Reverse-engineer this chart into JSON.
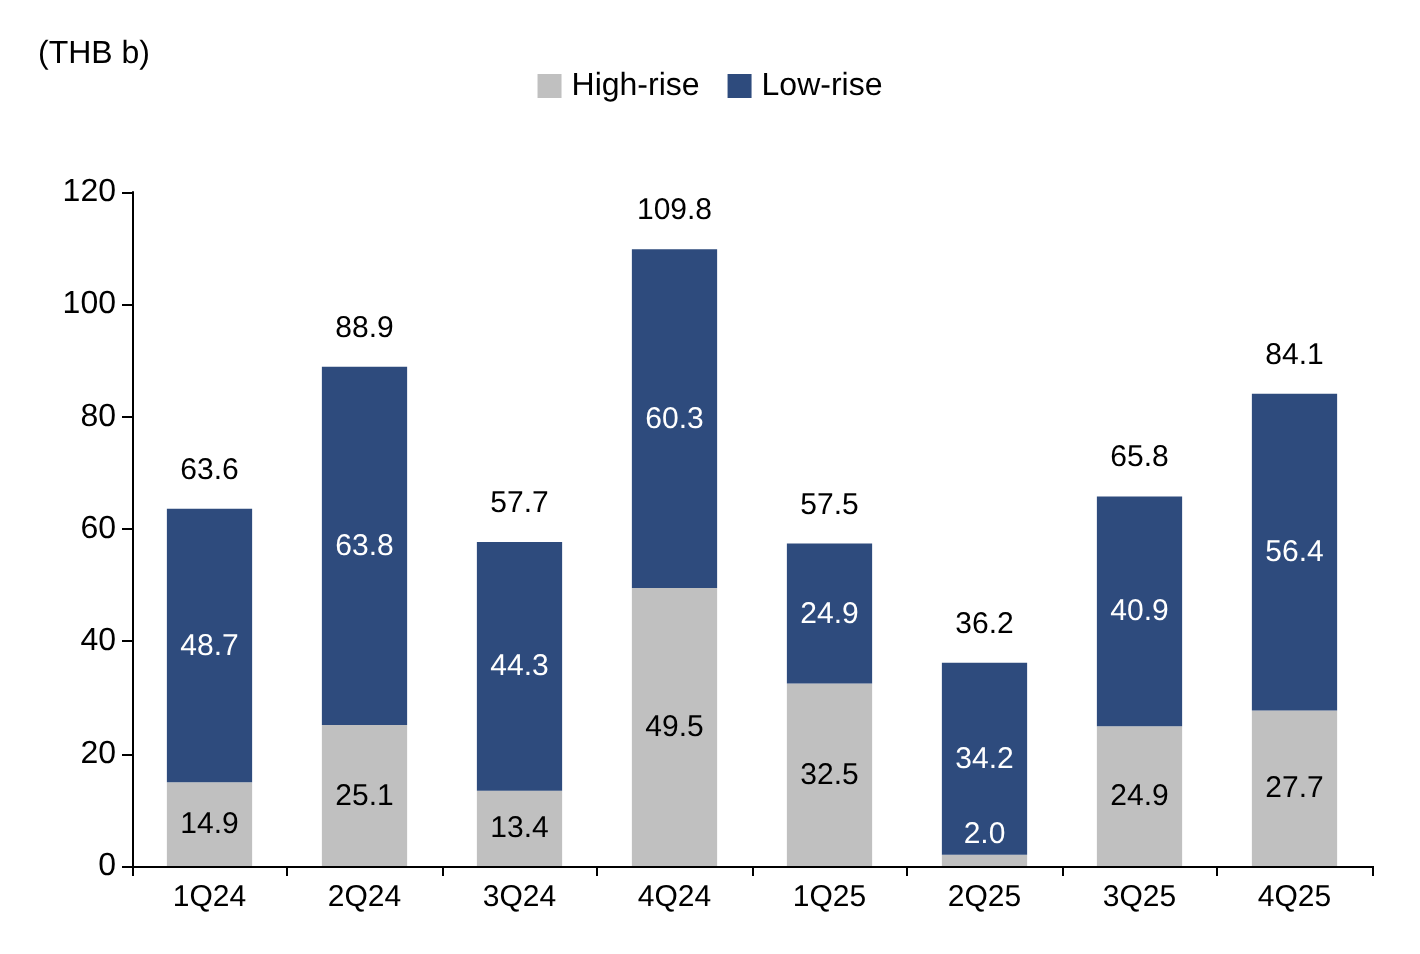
{
  "chart_data": {
    "type": "bar",
    "stacked": true,
    "ylabel": "(THB b)",
    "categories": [
      "1Q24",
      "2Q24",
      "3Q24",
      "4Q24",
      "1Q25",
      "2Q25",
      "3Q25",
      "4Q25"
    ],
    "series": [
      {
        "name": "High-rise",
        "color": "#c0c0c0",
        "values": [
          14.9,
          25.1,
          13.4,
          49.5,
          32.5,
          2.0,
          24.9,
          27.7
        ],
        "value_labels": [
          "14.9",
          "25.1",
          "13.4",
          "49.5",
          "32.5",
          "2.0",
          "24.9",
          "27.7"
        ]
      },
      {
        "name": "Low-rise",
        "color": "#2e4b7d",
        "values": [
          48.7,
          63.8,
          44.3,
          60.3,
          24.9,
          34.2,
          40.9,
          56.4
        ],
        "value_labels": [
          "48.7",
          "63.8",
          "44.3",
          "60.3",
          "24.9",
          "34.2",
          "40.9",
          "56.4"
        ]
      }
    ],
    "totals": [
      "63.6",
      "88.9",
      "57.7",
      "109.8",
      "57.5",
      "36.2",
      "65.8",
      "84.1"
    ],
    "ylim": [
      0,
      120
    ],
    "yticks": [
      0,
      20,
      40,
      60,
      80,
      100,
      120
    ],
    "grid": false,
    "legend": "top"
  }
}
